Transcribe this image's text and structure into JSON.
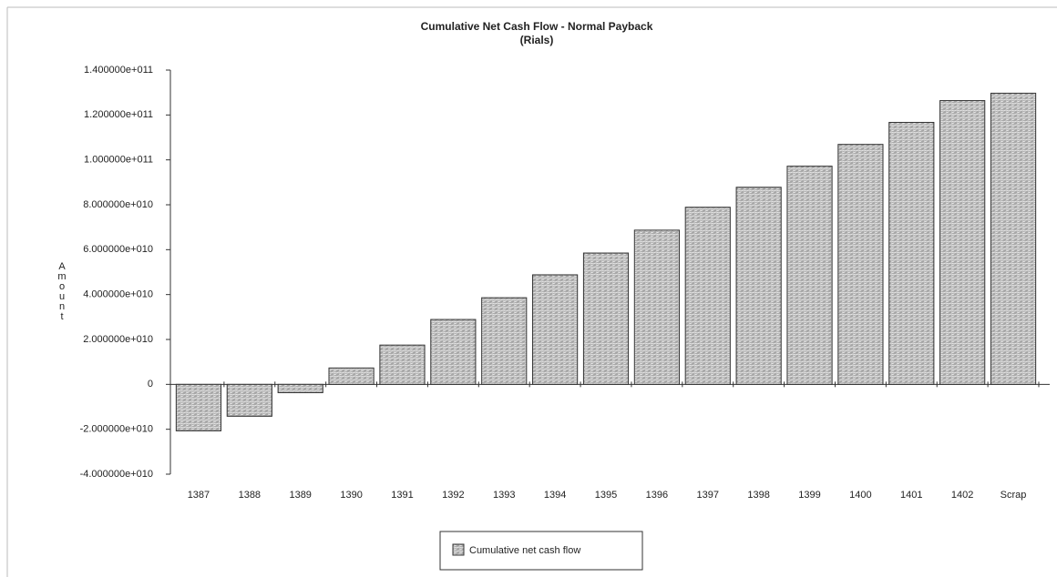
{
  "chart_data": {
    "type": "bar",
    "title": "Cumulative Net Cash Flow - Normal Payback",
    "subtitle": "(Rials)",
    "y_label": "Amount",
    "categories": [
      "1387",
      "1388",
      "1389",
      "1390",
      "1391",
      "1392",
      "1393",
      "1394",
      "1395",
      "1396",
      "1397",
      "1398",
      "1399",
      "1400",
      "1401",
      "1402",
      "Scrap"
    ],
    "series": [
      {
        "name": "Cumulative net cash flow",
        "color": "#a8a8a8",
        "values": [
          -20700000000,
          -14200000000,
          -3700000000,
          7300000000,
          17500000000,
          28900000000,
          38600000000,
          48800000000,
          58500000000,
          68700000000,
          78900000000,
          87800000000,
          97200000000,
          106900000000,
          116700000000,
          126400000000,
          129700000000
        ]
      }
    ],
    "ylim": [
      -40000000000,
      140000000000
    ],
    "yticks": [
      {
        "value": -40000000000,
        "label": "-4.000000e+010"
      },
      {
        "value": -20000000000,
        "label": "-2.000000e+010"
      },
      0,
      {
        "value": 20000000000,
        "label": "2.000000e+010"
      },
      {
        "value": 40000000000,
        "label": "4.000000e+010"
      },
      {
        "value": 60000000000,
        "label": "6.000000e+010"
      },
      {
        "value": 80000000000,
        "label": "8.000000e+010"
      },
      {
        "value": 100000000000,
        "label": "1.000000e+011"
      },
      {
        "value": 120000000000,
        "label": "1.200000e+011"
      },
      {
        "value": 140000000000,
        "label": "1.400000e+011"
      }
    ],
    "grid": false,
    "legend": "bottom"
  }
}
